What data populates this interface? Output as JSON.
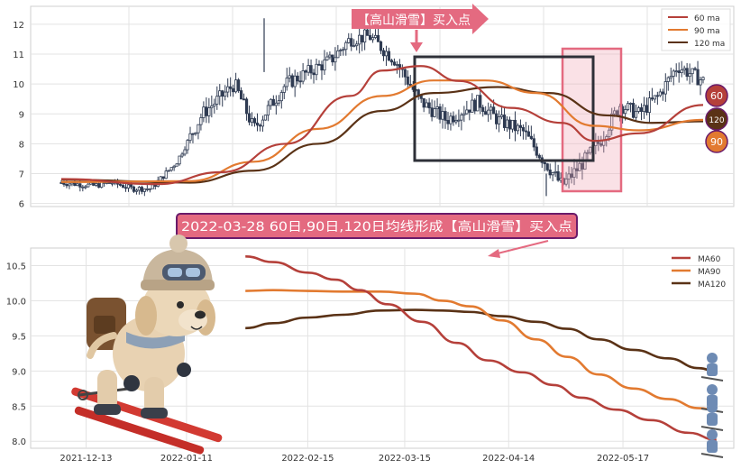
{
  "colors": {
    "ma60": "#b5403a",
    "ma90": "#e27a30",
    "ma120": "#5a3216",
    "candle": "#2f3b52",
    "highlight_pink": "#f2aab8",
    "highlight_border": "#e46a80",
    "annotation_bg": "#e46a80",
    "frame": "#2e3038",
    "grid": "#e3e3e3"
  },
  "chart_data": [
    {
      "type": "candlestick",
      "ylim": [
        5.9,
        12.6
      ],
      "yticks": [
        6,
        7,
        8,
        9,
        10,
        11,
        12
      ],
      "grid": true,
      "legend_position": "top-right",
      "legend": [
        {
          "key": "ma60",
          "label": "60 ma"
        },
        {
          "key": "ma90",
          "label": "90 ma"
        },
        {
          "key": "ma120",
          "label": "120 ma"
        }
      ],
      "annotation": "【高山滑雪】买入点",
      "end_badges": [
        "60",
        "120",
        "90"
      ],
      "price_path": [
        {
          "t": 0,
          "v": 6.7
        },
        {
          "t": 0.05,
          "v": 6.6
        },
        {
          "t": 0.08,
          "v": 6.7
        },
        {
          "t": 0.11,
          "v": 6.5
        },
        {
          "t": 0.14,
          "v": 6.5
        },
        {
          "t": 0.18,
          "v": 7.4
        },
        {
          "t": 0.22,
          "v": 9.0
        },
        {
          "t": 0.27,
          "v": 10.0
        },
        {
          "t": 0.3,
          "v": 8.5
        },
        {
          "t": 0.35,
          "v": 10.0
        },
        {
          "t": 0.42,
          "v": 10.8
        },
        {
          "t": 0.45,
          "v": 11.5
        },
        {
          "t": 0.48,
          "v": 11.6
        },
        {
          "t": 0.52,
          "v": 10.8
        },
        {
          "t": 0.56,
          "v": 9.4
        },
        {
          "t": 0.6,
          "v": 8.8
        },
        {
          "t": 0.65,
          "v": 9.4
        },
        {
          "t": 0.68,
          "v": 8.8
        },
        {
          "t": 0.72,
          "v": 8.4
        },
        {
          "t": 0.75,
          "v": 7.5
        },
        {
          "t": 0.78,
          "v": 6.6
        },
        {
          "t": 0.81,
          "v": 7.3
        },
        {
          "t": 0.84,
          "v": 8.1
        },
        {
          "t": 0.87,
          "v": 9.3
        },
        {
          "t": 0.9,
          "v": 9.0
        },
        {
          "t": 0.93,
          "v": 9.6
        },
        {
          "t": 0.96,
          "v": 10.6
        },
        {
          "t": 1.0,
          "v": 10.1
        }
      ],
      "ma_series": {
        "ma60": [
          {
            "t": 0,
            "v": 6.82
          },
          {
            "t": 0.15,
            "v": 6.65
          },
          {
            "t": 0.25,
            "v": 7.05
          },
          {
            "t": 0.35,
            "v": 8.0
          },
          {
            "t": 0.45,
            "v": 9.6
          },
          {
            "t": 0.5,
            "v": 10.45
          },
          {
            "t": 0.56,
            "v": 10.6
          },
          {
            "t": 0.62,
            "v": 10.1
          },
          {
            "t": 0.7,
            "v": 9.2
          },
          {
            "t": 0.78,
            "v": 8.7
          },
          {
            "t": 0.83,
            "v": 8.1
          },
          {
            "t": 0.9,
            "v": 8.35
          },
          {
            "t": 1.0,
            "v": 9.3
          }
        ],
        "ma90": [
          {
            "t": 0,
            "v": 6.72
          },
          {
            "t": 0.2,
            "v": 6.75
          },
          {
            "t": 0.3,
            "v": 7.4
          },
          {
            "t": 0.4,
            "v": 8.5
          },
          {
            "t": 0.5,
            "v": 9.6
          },
          {
            "t": 0.58,
            "v": 10.12
          },
          {
            "t": 0.66,
            "v": 10.12
          },
          {
            "t": 0.74,
            "v": 9.7
          },
          {
            "t": 0.83,
            "v": 8.6
          },
          {
            "t": 0.9,
            "v": 8.45
          },
          {
            "t": 1.0,
            "v": 8.8
          }
        ],
        "ma120": [
          {
            "t": 0,
            "v": 6.8
          },
          {
            "t": 0.2,
            "v": 6.7
          },
          {
            "t": 0.3,
            "v": 7.1
          },
          {
            "t": 0.4,
            "v": 8.0
          },
          {
            "t": 0.5,
            "v": 9.1
          },
          {
            "t": 0.58,
            "v": 9.7
          },
          {
            "t": 0.68,
            "v": 9.9
          },
          {
            "t": 0.76,
            "v": 9.7
          },
          {
            "t": 0.85,
            "v": 8.95
          },
          {
            "t": 0.92,
            "v": 8.7
          },
          {
            "t": 1.0,
            "v": 8.75
          }
        ]
      }
    },
    {
      "type": "line",
      "ylim": [
        7.9,
        10.75
      ],
      "yticks": [
        "8.0",
        "8.5",
        "9.0",
        "9.5",
        "10.0",
        "10.5"
      ],
      "xticks": [
        "2021-12-13",
        "2022-01-11",
        "2022-02-15",
        "2022-03-15",
        "2022-04-14",
        "2022-05-17"
      ],
      "xlim": [
        "2021-11-27",
        "2022-06-18"
      ],
      "grid": true,
      "legend_position": "top-right",
      "annotation": "2022-03-28 60日,90日,120日均线形成【高山滑雪】买入点",
      "series": [
        {
          "name": "MA60",
          "key": "ma60",
          "points": [
            {
              "x": "2022-01-28",
              "y": 10.63
            },
            {
              "x": "2022-02-05",
              "y": 10.55
            },
            {
              "x": "2022-02-15",
              "y": 10.4
            },
            {
              "x": "2022-02-23",
              "y": 10.3
            },
            {
              "x": "2022-03-02",
              "y": 10.15
            },
            {
              "x": "2022-03-10",
              "y": 9.95
            },
            {
              "x": "2022-03-20",
              "y": 9.7
            },
            {
              "x": "2022-03-30",
              "y": 9.4
            },
            {
              "x": "2022-04-08",
              "y": 9.15
            },
            {
              "x": "2022-04-18",
              "y": 8.98
            },
            {
              "x": "2022-04-27",
              "y": 8.8
            },
            {
              "x": "2022-05-05",
              "y": 8.62
            },
            {
              "x": "2022-05-15",
              "y": 8.45
            },
            {
              "x": "2022-05-25",
              "y": 8.3
            },
            {
              "x": "2022-06-05",
              "y": 8.12
            },
            {
              "x": "2022-06-13",
              "y": 8.02
            }
          ]
        },
        {
          "name": "MA90",
          "key": "ma90",
          "points": [
            {
              "x": "2022-01-28",
              "y": 10.14
            },
            {
              "x": "2022-02-05",
              "y": 10.15
            },
            {
              "x": "2022-02-15",
              "y": 10.14
            },
            {
              "x": "2022-02-25",
              "y": 10.13
            },
            {
              "x": "2022-03-08",
              "y": 10.13
            },
            {
              "x": "2022-03-18",
              "y": 10.1
            },
            {
              "x": "2022-03-26",
              "y": 10.0
            },
            {
              "x": "2022-04-03",
              "y": 9.92
            },
            {
              "x": "2022-04-12",
              "y": 9.72
            },
            {
              "x": "2022-04-22",
              "y": 9.45
            },
            {
              "x": "2022-05-01",
              "y": 9.2
            },
            {
              "x": "2022-05-10",
              "y": 8.95
            },
            {
              "x": "2022-05-20",
              "y": 8.75
            },
            {
              "x": "2022-05-30",
              "y": 8.6
            },
            {
              "x": "2022-06-08",
              "y": 8.47
            },
            {
              "x": "2022-06-13",
              "y": 8.44
            }
          ]
        },
        {
          "name": "MA120",
          "key": "ma120",
          "points": [
            {
              "x": "2022-01-28",
              "y": 9.61
            },
            {
              "x": "2022-02-05",
              "y": 9.68
            },
            {
              "x": "2022-02-15",
              "y": 9.76
            },
            {
              "x": "2022-02-25",
              "y": 9.8
            },
            {
              "x": "2022-03-08",
              "y": 9.86
            },
            {
              "x": "2022-03-18",
              "y": 9.87
            },
            {
              "x": "2022-03-26",
              "y": 9.86
            },
            {
              "x": "2022-04-03",
              "y": 9.84
            },
            {
              "x": "2022-04-12",
              "y": 9.78
            },
            {
              "x": "2022-04-22",
              "y": 9.7
            },
            {
              "x": "2022-05-01",
              "y": 9.6
            },
            {
              "x": "2022-05-10",
              "y": 9.45
            },
            {
              "x": "2022-05-20",
              "y": 9.3
            },
            {
              "x": "2022-05-30",
              "y": 9.18
            },
            {
              "x": "2022-06-08",
              "y": 9.04
            },
            {
              "x": "2022-06-13",
              "y": 8.99
            }
          ]
        }
      ]
    }
  ]
}
